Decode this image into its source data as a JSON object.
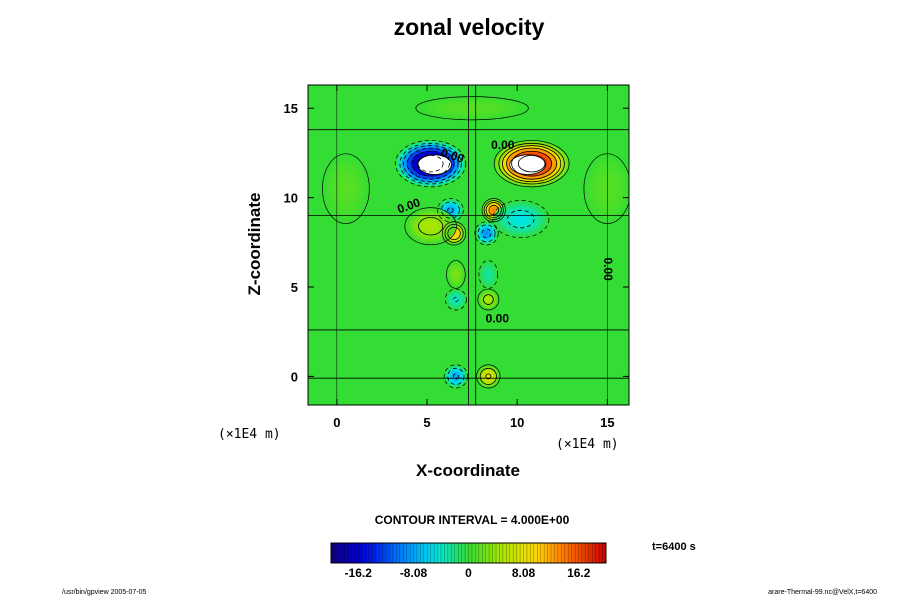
{
  "chart_data": {
    "type": "heatmap",
    "title": "zonal velocity",
    "xlabel": "X-coordinate",
    "ylabel": "Z-coordinate",
    "x_unit_note": "(×1E4 m)",
    "y_unit_note": "(×1E4 m)",
    "xlim": [
      -1.6,
      16.2
    ],
    "ylim": [
      -1.6,
      16.3
    ],
    "x_ticks": [
      0,
      5,
      10,
      15
    ],
    "y_ticks": [
      0,
      5,
      10,
      15
    ],
    "contour_interval_label": "CONTOUR INTERVAL = 4.000E+00",
    "contour_labels": [
      {
        "text": "0.00",
        "x": 6.4,
        "y": 12.3,
        "angle": 18
      },
      {
        "text": "0.00",
        "x": 9.2,
        "y": 12.9,
        "angle": 0
      },
      {
        "text": "0.00",
        "x": 4.0,
        "y": 9.5,
        "angle": -20
      },
      {
        "text": "0.00",
        "x": 8.9,
        "y": 3.2,
        "angle": 0
      },
      {
        "text": "0.00",
        "x": 15.0,
        "y": 6.0,
        "angle": 90
      }
    ],
    "features": [
      {
        "kind": "jet",
        "x": 5.2,
        "y": 11.9,
        "value": -22,
        "sx": 1.5,
        "sy": 1.0,
        "saturated": true
      },
      {
        "kind": "jet",
        "x": 10.8,
        "y": 11.9,
        "value": 22,
        "sx": 1.6,
        "sy": 1.0,
        "saturated": true
      },
      {
        "kind": "cell",
        "x": 6.3,
        "y": 9.3,
        "value": -8,
        "sx": 0.55,
        "sy": 0.5
      },
      {
        "kind": "cell",
        "x": 8.7,
        "y": 9.3,
        "value": 14,
        "sx": 0.5,
        "sy": 0.5
      },
      {
        "kind": "cell",
        "x": 6.5,
        "y": 8.0,
        "value": 11,
        "sx": 0.5,
        "sy": 0.5
      },
      {
        "kind": "cell",
        "x": 8.3,
        "y": 8.0,
        "value": -9,
        "sx": 0.5,
        "sy": 0.5
      },
      {
        "kind": "cell",
        "x": 5.2,
        "y": 8.4,
        "value": 5,
        "sx": 1.1,
        "sy": 0.8
      },
      {
        "kind": "cell",
        "x": 10.2,
        "y": 8.8,
        "value": -5,
        "sx": 1.2,
        "sy": 0.8
      },
      {
        "kind": "cell",
        "x": 6.6,
        "y": 5.7,
        "value": 3,
        "sx": 0.4,
        "sy": 0.6
      },
      {
        "kind": "cell",
        "x": 8.4,
        "y": 5.7,
        "value": -3,
        "sx": 0.4,
        "sy": 0.6
      },
      {
        "kind": "cell",
        "x": 6.6,
        "y": 4.3,
        "value": -4,
        "sx": 0.45,
        "sy": 0.45
      },
      {
        "kind": "cell",
        "x": 8.4,
        "y": 4.3,
        "value": 5,
        "sx": 0.45,
        "sy": 0.45
      },
      {
        "kind": "cell",
        "x": 6.6,
        "y": 0.0,
        "value": -8,
        "sx": 0.5,
        "sy": 0.5
      },
      {
        "kind": "cell",
        "x": 8.4,
        "y": 0.0,
        "value": 8,
        "sx": 0.5,
        "sy": 0.5
      },
      {
        "kind": "cell",
        "x": 7.5,
        "y": 15.0,
        "value": 1.5,
        "sx": 2.4,
        "sy": 0.5
      },
      {
        "kind": "cell",
        "x": 0.5,
        "y": 10.5,
        "value": 1.5,
        "sx": 1.0,
        "sy": 1.5
      },
      {
        "kind": "cell",
        "x": 15.0,
        "y": 10.5,
        "value": 1.5,
        "sx": 1.0,
        "sy": 1.5
      }
    ],
    "colorbar": {
      "vmin": -20.2,
      "vmax": 20.2,
      "ticks": [
        -16.2,
        -8.08,
        0,
        8.08,
        16.2
      ],
      "tick_labels": [
        "-16.2",
        "-8.08",
        "0",
        "8.08",
        "16.2"
      ]
    }
  },
  "labels": {
    "time": "t=6400 s",
    "footer_left": "/usr/bin/gpview 2005-07-05",
    "footer_right": "arare-Thermal-99.nc@VelX,t=6400"
  },
  "colors": {
    "background": "#ffffff",
    "field_zero": "#33dd33",
    "positive_max": "#cc0000",
    "negative_max": "#110088"
  }
}
